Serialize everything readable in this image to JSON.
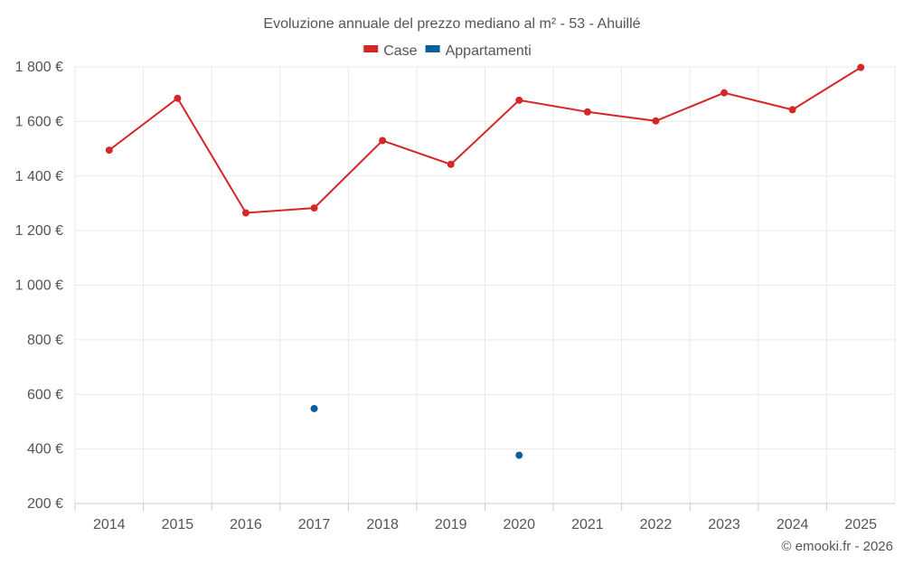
{
  "chart_data": {
    "type": "line",
    "title": "Evoluzione annuale del prezzo mediano al m² - 53 - Ahuillé",
    "categories": [
      "2014",
      "2015",
      "2016",
      "2017",
      "2018",
      "2019",
      "2020",
      "2021",
      "2022",
      "2023",
      "2024",
      "2025"
    ],
    "series": [
      {
        "name": "Case",
        "color": "#d62728",
        "values": [
          1495,
          1685,
          1265,
          1283,
          1530,
          1443,
          1678,
          1635,
          1602,
          1705,
          1643,
          1798
        ]
      },
      {
        "name": "Appartamenti",
        "color": "#0b5e9c",
        "values": [
          null,
          null,
          null,
          548,
          null,
          null,
          377,
          null,
          null,
          null,
          null,
          null
        ]
      }
    ],
    "ylim": [
      200,
      1800
    ],
    "yticks": [
      200,
      400,
      600,
      800,
      1000,
      1200,
      1400,
      1600,
      1800
    ],
    "ytick_labels": [
      "200 €",
      "400 €",
      "600 €",
      "800 €",
      "1 000 €",
      "1 200 €",
      "1 400 €",
      "1 600 €",
      "1 800 €"
    ],
    "xlabel": "",
    "ylabel": "",
    "grid": true,
    "legend_position": "top-center"
  },
  "credit": "© emooki.fr - 2026"
}
